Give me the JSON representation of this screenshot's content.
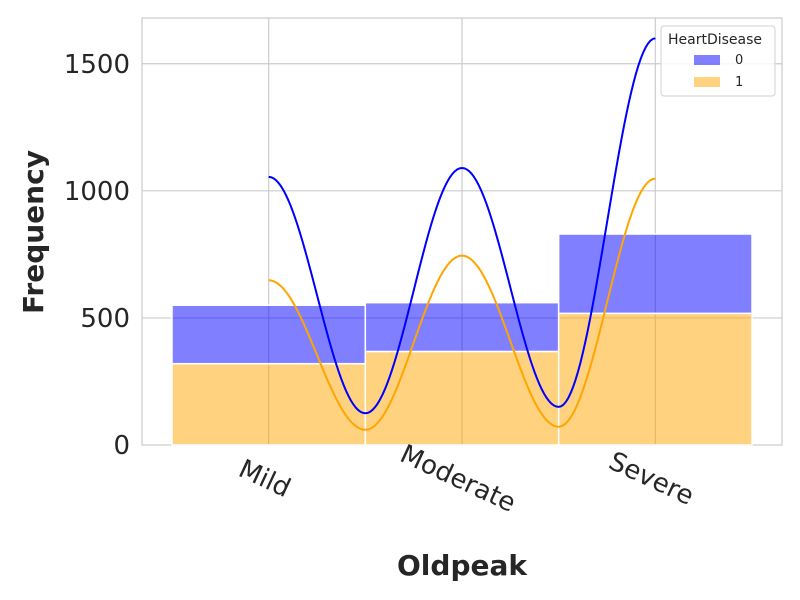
{
  "chart_data": {
    "type": "bar",
    "stacked": true,
    "categories": [
      "Mild",
      "Moderate",
      "Severe"
    ],
    "series": [
      {
        "name": "0",
        "values": [
          230,
          192,
          312
        ],
        "color": "#0000ff"
      },
      {
        "name": "1",
        "values": [
          320,
          368,
          518
        ],
        "color": "#ffa500"
      }
    ],
    "kde": [
      {
        "name": "0",
        "points": [
          [
            0,
            1055
          ],
          [
            0.5,
            125
          ],
          [
            1,
            1090
          ],
          [
            1.5,
            150
          ],
          [
            2,
            1600
          ]
        ],
        "color": "#0000ff"
      },
      {
        "name": "1",
        "points": [
          [
            0,
            648
          ],
          [
            0.5,
            60
          ],
          [
            1,
            745
          ],
          [
            1.5,
            72
          ],
          [
            2,
            1048
          ]
        ],
        "color": "#ffa500"
      }
    ],
    "xlabel": "Oldpeak",
    "ylabel": "Frequency",
    "ylim": [
      0,
      1680
    ],
    "yticks": [
      0,
      500,
      1000,
      1500
    ],
    "grid": true,
    "legend": {
      "title": "HeartDisease",
      "position": "top-right",
      "entries": [
        "0",
        "1"
      ]
    }
  }
}
